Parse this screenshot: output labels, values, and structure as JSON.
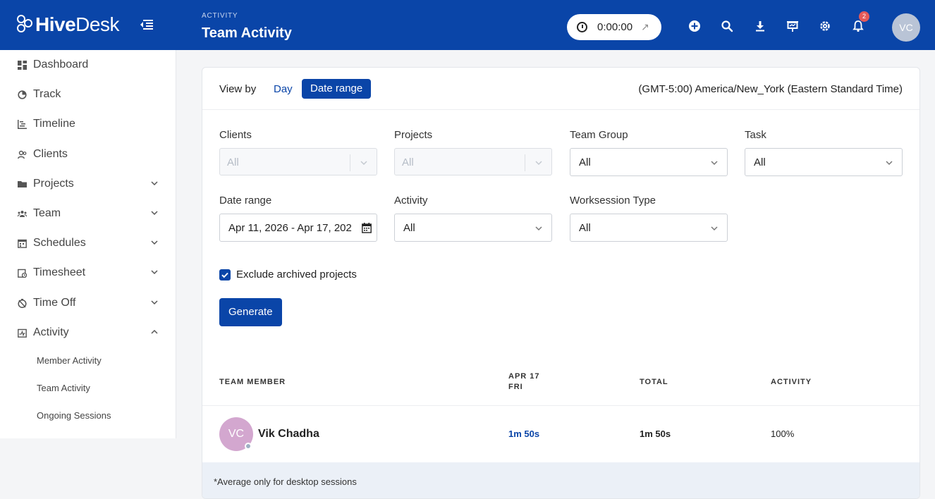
{
  "app": {
    "logo_bold": "Hive",
    "logo_light": "Desk",
    "breadcrumb": "ACTIVITY",
    "page_title": "Team Activity",
    "brand_color": "#0a45a8"
  },
  "topbar": {
    "timer_value": "0:00:00",
    "notification_count": "2",
    "user_initials": "VC",
    "icons": [
      "add-icon",
      "search-icon",
      "download-icon",
      "presentation-icon",
      "gear-icon",
      "bell-icon"
    ]
  },
  "sidebar": {
    "items": [
      {
        "label": "Dashboard",
        "icon": "dashboard-icon"
      },
      {
        "label": "Track",
        "icon": "track-icon"
      },
      {
        "label": "Timeline",
        "icon": "timeline-icon"
      },
      {
        "label": "Clients",
        "icon": "clients-icon"
      },
      {
        "label": "Projects",
        "icon": "folder-icon"
      },
      {
        "label": "Team",
        "icon": "team-icon"
      },
      {
        "label": "Schedules",
        "icon": "schedules-icon"
      },
      {
        "label": "Timesheet",
        "icon": "timesheet-icon"
      },
      {
        "label": "Time Off",
        "icon": "time-off-icon"
      },
      {
        "label": "Activity",
        "icon": "activity-icon"
      }
    ],
    "activity_subitems": [
      "Member Activity",
      "Team Activity",
      "Ongoing Sessions"
    ]
  },
  "viewbar": {
    "view_by_label": "View by",
    "day_label": "Day",
    "date_range_label": "Date range",
    "timezone": "(GMT-5:00) America/New_York (Eastern Standard Time)"
  },
  "filters": {
    "clients": {
      "label": "Clients",
      "value": "All"
    },
    "projects": {
      "label": "Projects",
      "value": "All"
    },
    "team_group": {
      "label": "Team Group",
      "value": "All"
    },
    "task": {
      "label": "Task",
      "value": "All"
    },
    "date_range": {
      "label": "Date range",
      "value": "Apr 11, 2026 - Apr 17, 202"
    },
    "activity": {
      "label": "Activity",
      "value": "All"
    },
    "worksession_type": {
      "label": "Worksession Type",
      "value": "All"
    }
  },
  "options": {
    "exclude_archived_label": "Exclude archived projects",
    "exclude_archived_checked": true,
    "generate_label": "Generate"
  },
  "table": {
    "headers": {
      "member": "TEAM MEMBER",
      "day_line1": "APR 17",
      "day_line2": "FRI",
      "total": "TOTAL",
      "activity": "ACTIVITY"
    },
    "rows": [
      {
        "initials": "VC",
        "name": "Vik Chadha",
        "day": "1m 50s",
        "total": "1m 50s",
        "activity": "100%"
      }
    ]
  },
  "footer_note": "*Average only for desktop sessions"
}
